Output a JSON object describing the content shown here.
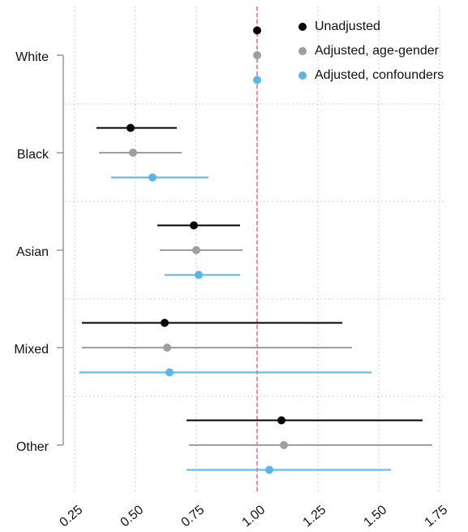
{
  "chart_data": {
    "type": "forest",
    "categories": [
      "White",
      "Black",
      "Asian",
      "Mixed",
      "Other"
    ],
    "series": [
      {
        "name": "Unadjusted",
        "color": "#000000",
        "values": [
          1.0,
          0.48,
          0.74,
          0.62,
          1.1
        ],
        "lower": [
          1.0,
          0.34,
          0.59,
          0.28,
          0.71
        ],
        "upper": [
          1.0,
          0.67,
          0.93,
          1.35,
          1.68
        ]
      },
      {
        "name": "Adjusted, age-gender",
        "color": "#9e9e9e",
        "values": [
          1.0,
          0.49,
          0.75,
          0.63,
          1.11
        ],
        "lower": [
          1.0,
          0.35,
          0.6,
          0.28,
          0.72
        ],
        "upper": [
          1.0,
          0.69,
          0.94,
          1.39,
          1.72
        ]
      },
      {
        "name": "Adjusted, confounders",
        "color": "#5ab4e5",
        "values": [
          1.0,
          0.57,
          0.76,
          0.64,
          1.05
        ],
        "lower": [
          1.0,
          0.4,
          0.62,
          0.27,
          0.71
        ],
        "upper": [
          1.0,
          0.8,
          0.93,
          1.47,
          1.55
        ]
      }
    ],
    "xlim": [
      0.21,
      1.77
    ],
    "xticks": [
      0.25,
      {
        "value": 0.5,
        "label": "0.50"
      },
      0.75,
      {
        "value": 1,
        "label": "1.00"
      },
      1.25,
      {
        "value": 1.5,
        "label": "1.50"
      },
      1.75
    ],
    "reference_line": 1,
    "reference_color": "#d6689a",
    "grid": true,
    "legend": "top-right"
  }
}
